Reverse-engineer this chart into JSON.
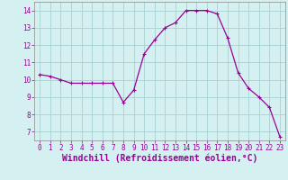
{
  "x": [
    0,
    1,
    2,
    3,
    4,
    5,
    6,
    7,
    8,
    9,
    10,
    11,
    12,
    13,
    14,
    15,
    16,
    17,
    18,
    19,
    20,
    21,
    22,
    23
  ],
  "y": [
    10.3,
    10.2,
    10.0,
    9.8,
    9.8,
    9.8,
    9.8,
    9.8,
    8.7,
    9.4,
    11.5,
    12.3,
    13.0,
    13.3,
    14.0,
    14.0,
    14.0,
    13.8,
    12.4,
    10.4,
    9.5,
    9.0,
    8.4,
    6.7
  ],
  "line_color": "#990099",
  "marker": "+",
  "marker_size": 3,
  "marker_linewidth": 0.8,
  "bg_color": "#d4f0f0",
  "grid_color": "#a0cccc",
  "tick_color": "#990099",
  "xlabel": "Windchill (Refroidissement éolien,°C)",
  "xlabel_color": "#990099",
  "ylim": [
    6.5,
    14.5
  ],
  "yticks": [
    7,
    8,
    9,
    10,
    11,
    12,
    13,
    14
  ],
  "xlim": [
    -0.5,
    23.5
  ],
  "xticks": [
    0,
    1,
    2,
    3,
    4,
    5,
    6,
    7,
    8,
    9,
    10,
    11,
    12,
    13,
    14,
    15,
    16,
    17,
    18,
    19,
    20,
    21,
    22,
    23
  ],
  "tick_label_fontsize": 5.5,
  "xlabel_fontsize": 7.0,
  "linewidth": 0.9
}
